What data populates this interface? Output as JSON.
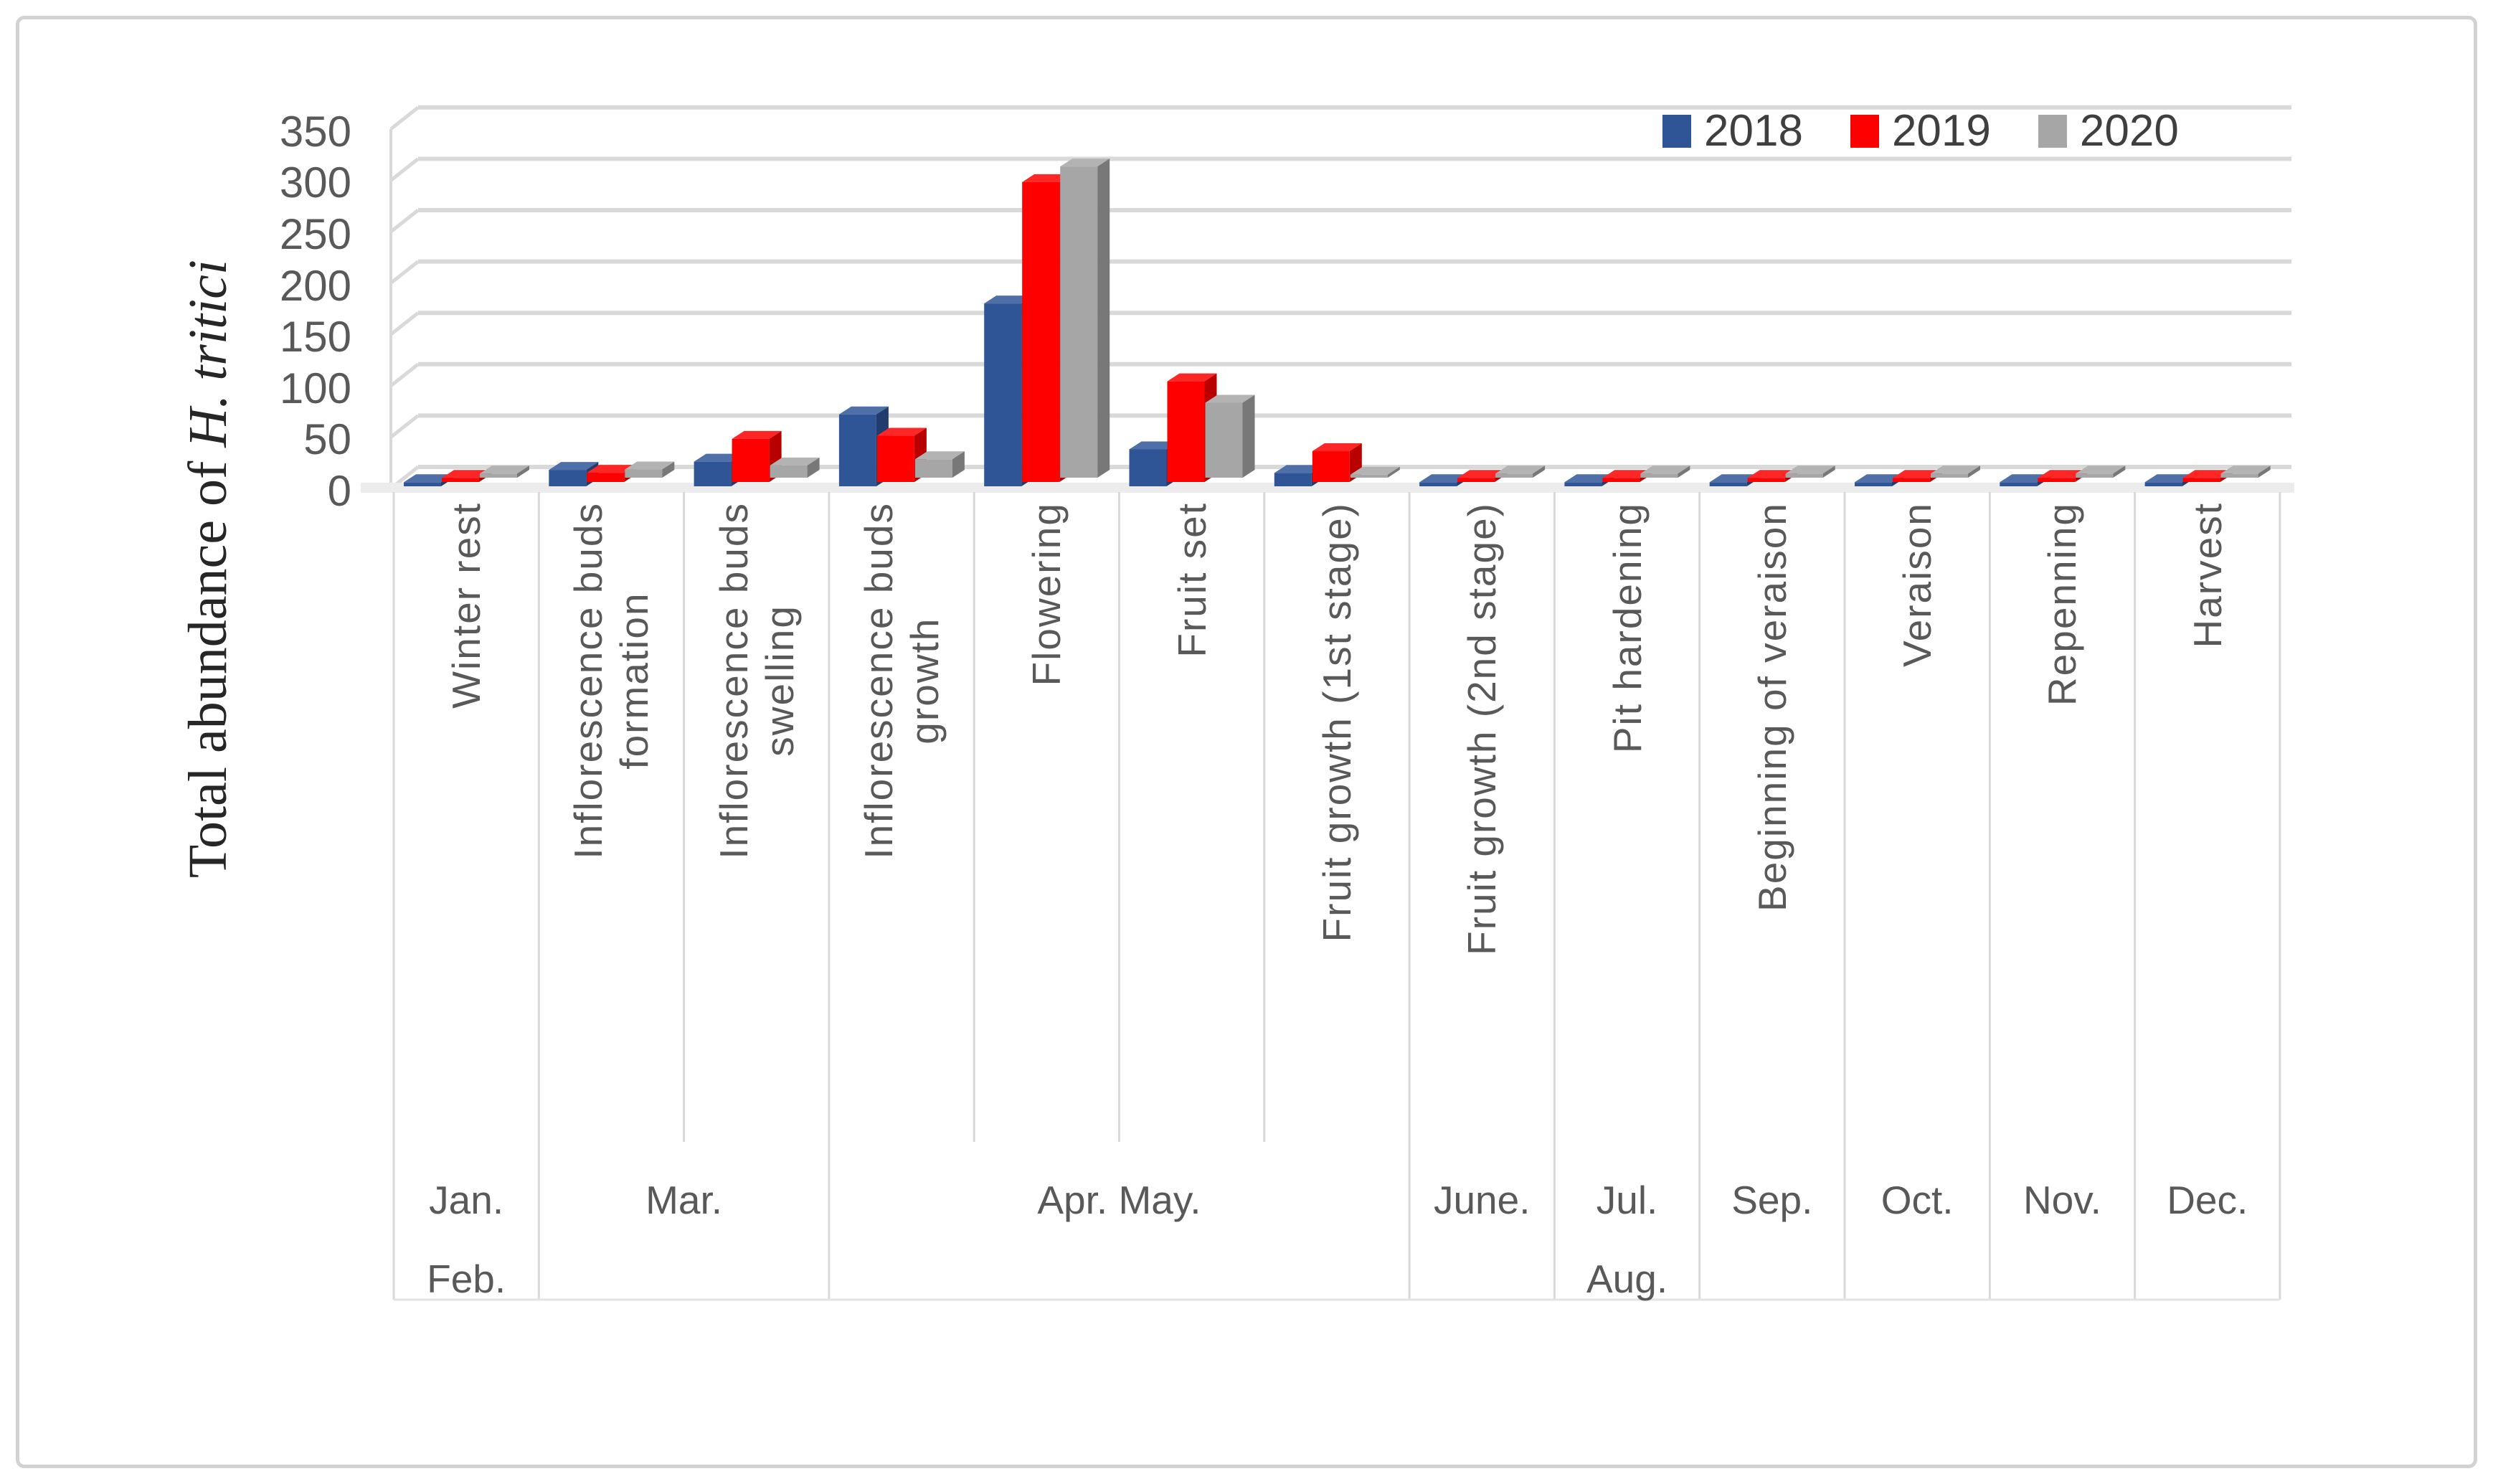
{
  "chart_data": {
    "type": "bar",
    "style": "3d-clustered-column",
    "categories": [
      "Winter rest",
      "Inflorescence buds\nformation",
      "Inflorescence buds\nswelling",
      "Inflorescence buds\ngrowth",
      "Flowering",
      "Fruit set",
      "Fruit growth (1st stage)",
      "Fruit growth (2nd  stage)",
      "Pit hardening",
      "Beginning of veraison",
      "Veraison",
      "Repenning",
      "Harvest"
    ],
    "series": [
      {
        "name": "2018",
        "color": "#2F5597",
        "values": [
          4,
          16,
          24,
          70,
          178,
          36,
          13,
          4,
          4,
          4,
          4,
          4,
          4
        ]
      },
      {
        "name": "2019",
        "color": "#FF0000",
        "values": [
          4,
          9,
          42,
          45,
          292,
          98,
          30,
          4,
          4,
          4,
          4,
          4,
          4
        ]
      },
      {
        "name": "2020",
        "color": "#A6A6A6",
        "values": [
          4,
          8,
          12,
          18,
          303,
          73,
          3,
          4,
          4,
          4,
          4,
          4,
          4
        ]
      }
    ],
    "yaxis": {
      "title_normal": "Total abundance of ",
      "title_italic": "H. tritici",
      "min": 0,
      "max": 350,
      "step": 50
    },
    "month_row": [
      {
        "label": "Jan.\nFeb.",
        "span": 1
      },
      {
        "label": "Mar.",
        "span": 2
      },
      {
        "label": "Apr. May.",
        "span": 4
      },
      {
        "label": "June.",
        "span": 1
      },
      {
        "label": "Jul.\nAug.",
        "span": 1
      },
      {
        "label": "Sep.",
        "span": 1
      },
      {
        "label": "Oct.",
        "span": 1
      },
      {
        "label": "Nov.",
        "span": 1
      },
      {
        "label": "Dec.",
        "span": 1
      }
    ],
    "legend_position": "top-right",
    "grid": true,
    "grid_color": "#d9d9d9"
  }
}
